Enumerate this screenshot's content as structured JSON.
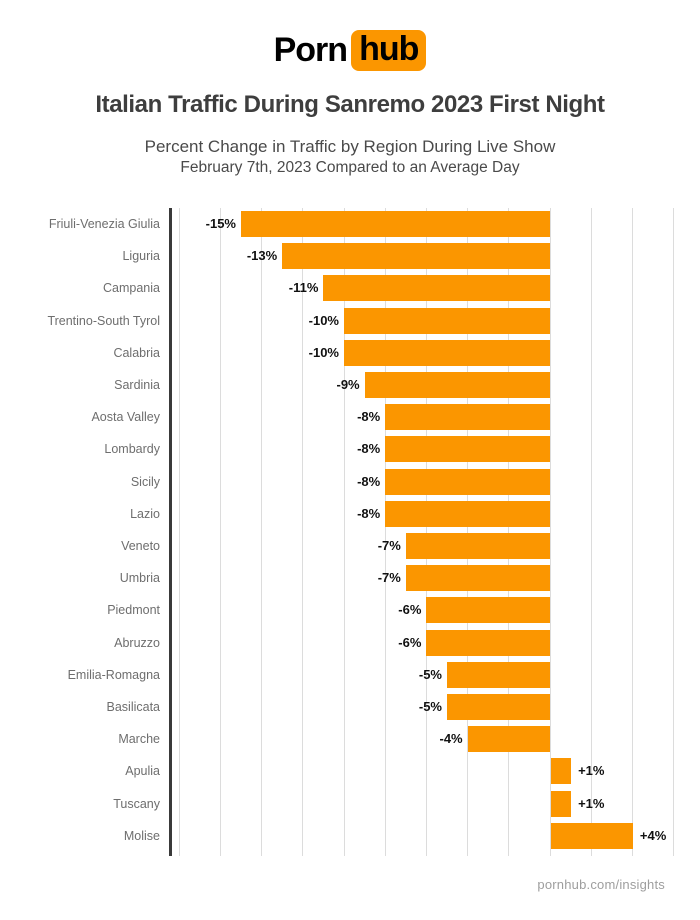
{
  "logo": {
    "word1": "Porn",
    "word2": "hub",
    "accent": "#FB9600"
  },
  "header": {
    "title": "Italian Traffic During Sanremo 2023 First Night",
    "subtitle1": "Percent Change in Traffic by Region During Live Show",
    "subtitle2": "February 7th, 2023 Compared to an Average Day"
  },
  "footer": {
    "text": "pornhub.com/insights"
  },
  "chart_data": {
    "type": "bar",
    "orientation": "horizontal",
    "title": "Italian Traffic During Sanremo 2023 First Night",
    "xlabel": "",
    "ylabel": "",
    "categories": [
      "Friuli-Venezia Giulia",
      "Liguria",
      "Campania",
      "Trentino-South Tyrol",
      "Calabria",
      "Sardinia",
      "Aosta Valley",
      "Lombardy",
      "Sicily",
      "Lazio",
      "Veneto",
      "Umbria",
      "Piedmont",
      "Abruzzo",
      "Emilia-Romagna",
      "Basilicata",
      "Marche",
      "Apulia",
      "Tuscany",
      "Molise"
    ],
    "values": [
      -15,
      -13,
      -11,
      -10,
      -10,
      -9,
      -8,
      -8,
      -8,
      -8,
      -7,
      -7,
      -6,
      -6,
      -5,
      -5,
      -4,
      1,
      1,
      4
    ],
    "value_labels": [
      "-15%",
      "-13%",
      "-11%",
      "-10%",
      "-10%",
      "-9%",
      "-8%",
      "-8%",
      "-8%",
      "-8%",
      "-7%",
      "-7%",
      "-6%",
      "-6%",
      "-5%",
      "-5%",
      "-4%",
      "+1%",
      "+1%",
      "+4%"
    ],
    "bar_color": "#FB9600",
    "value_label_color": "#111111",
    "category_label_color": "#6e6e6e",
    "axis_line_color": "#3a3a3a",
    "gridline_color": "#dcdcdc",
    "xlim": [
      -18.5,
      7.3
    ],
    "x_grid": {
      "min": -18,
      "max": 6,
      "step": 2
    },
    "grid": true,
    "legend": false,
    "zero_baseline": 0
  }
}
